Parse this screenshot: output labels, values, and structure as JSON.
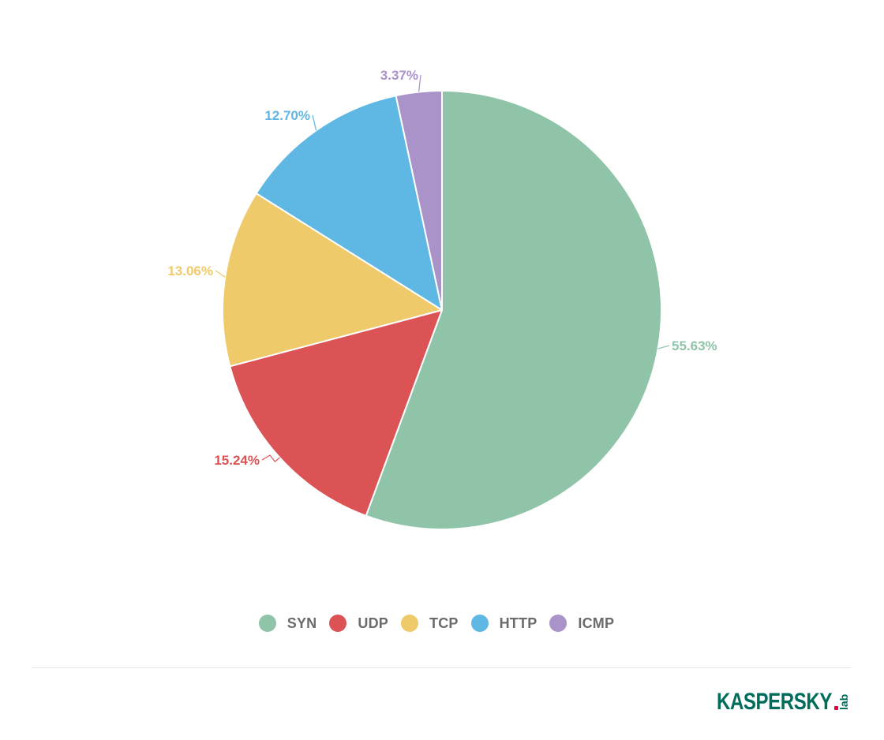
{
  "chart_data": {
    "type": "pie",
    "title": "",
    "slices": [
      {
        "name": "SYN",
        "value": 55.63,
        "label": "55.63%",
        "color": "#90c4a8"
      },
      {
        "name": "UDP",
        "value": 15.24,
        "label": "15.24%",
        "color": "#dc5356"
      },
      {
        "name": "TCP",
        "value": 13.06,
        "label": "13.06%",
        "color": "#eeca6a"
      },
      {
        "name": "HTTP",
        "value": 12.7,
        "label": "12.70%",
        "color": "#5fb7e4"
      },
      {
        "name": "ICMP",
        "value": 3.37,
        "label": "3.37%",
        "color": "#a993c8"
      }
    ],
    "legend_position": "bottom-center"
  },
  "brand": {
    "wordmark": "KASPERSKY",
    "suffix": "lab",
    "color": "#006d5b",
    "accent_color": "#e2003a"
  }
}
